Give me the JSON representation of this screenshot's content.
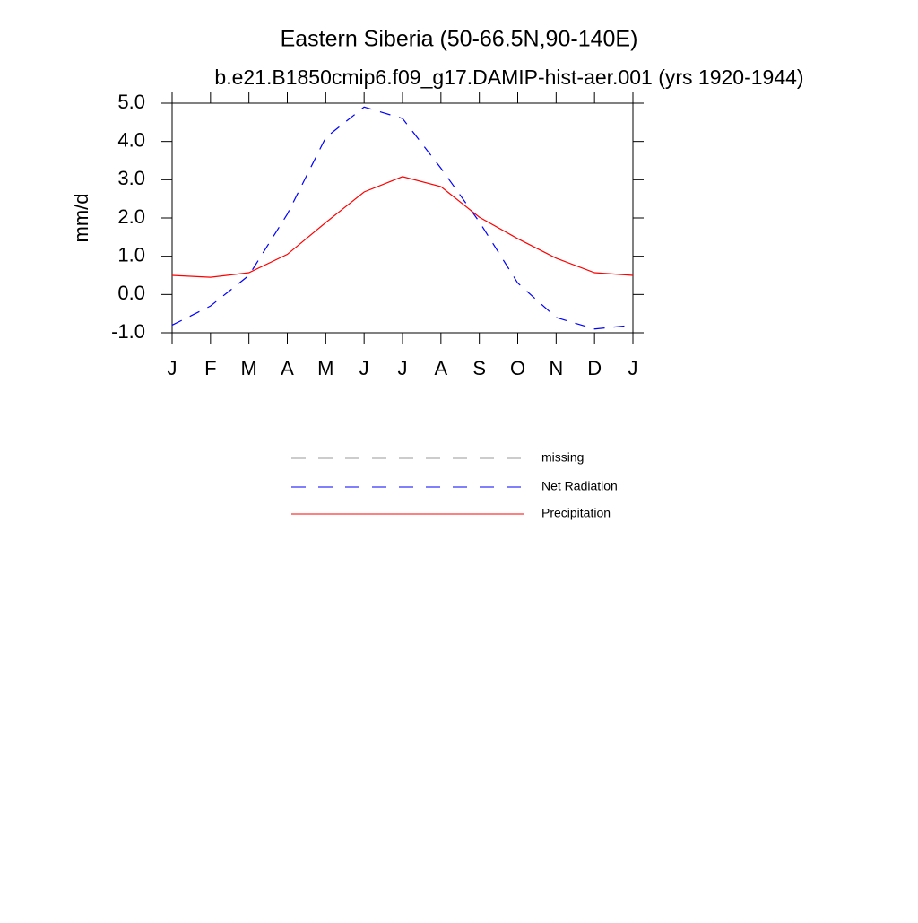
{
  "chart_data": {
    "type": "line",
    "title": "Eastern Siberia (50-66.5N,90-140E)",
    "subtitle": "b.e21.B1850cmip6.f09_g17.DAMIP-hist-aer.001 (yrs 1920-1944)",
    "ylabel": "mm/d",
    "categories": [
      "J",
      "F",
      "M",
      "A",
      "M",
      "J",
      "J",
      "A",
      "S",
      "O",
      "N",
      "D",
      "J"
    ],
    "ylim": [
      -1,
      5
    ],
    "yticks": [
      {
        "value": 5,
        "label": "5.0"
      },
      {
        "value": 4,
        "label": "4.0"
      },
      {
        "value": 3,
        "label": "3.0"
      },
      {
        "value": 2,
        "label": "2.0"
      },
      {
        "value": 1,
        "label": "1.0"
      },
      {
        "value": 0,
        "label": "0.0"
      },
      {
        "value": -1,
        "label": "-1.0"
      }
    ],
    "series": [
      {
        "name": "missing",
        "color": "#999999",
        "dashed": true,
        "values": [
          null,
          null,
          null,
          null,
          null,
          null,
          null,
          null,
          null,
          null,
          null,
          null,
          null
        ]
      },
      {
        "name": "Net Radiation",
        "color": "#0000ff",
        "dashed": true,
        "values": [
          -0.8,
          -0.3,
          0.5,
          2.1,
          4.1,
          4.9,
          4.6,
          3.3,
          1.9,
          0.3,
          -0.6,
          -0.9,
          -0.8
        ]
      },
      {
        "name": "Precipitation",
        "color": "#ff0000",
        "dashed": false,
        "values": [
          0.5,
          0.45,
          0.57,
          1.05,
          1.88,
          2.68,
          3.08,
          2.82,
          2.02,
          1.46,
          0.95,
          0.57,
          0.5
        ]
      }
    ]
  }
}
